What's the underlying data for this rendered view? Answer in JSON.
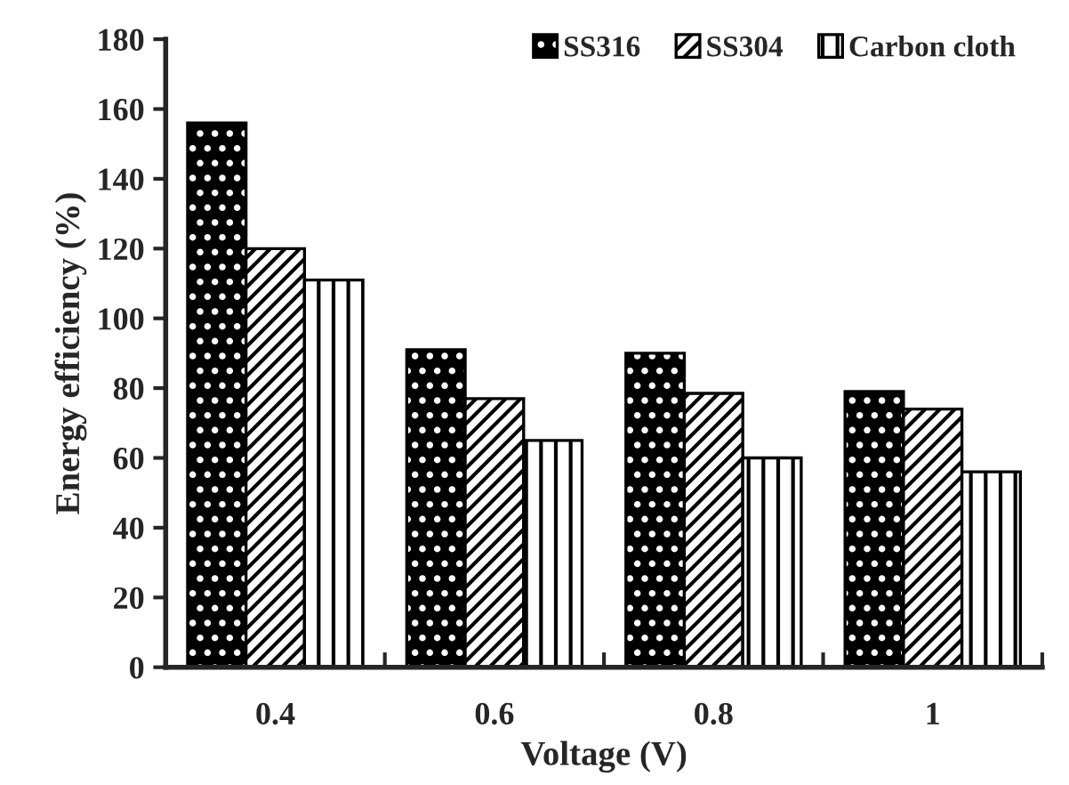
{
  "chart_data": {
    "type": "bar",
    "xlabel": "Voltage (V)",
    "ylabel": "Energy efficiency (%)",
    "categories": [
      "0.4",
      "0.6",
      "0.8",
      "1"
    ],
    "series": [
      {
        "name": "SS316",
        "color": "#000000",
        "values": [
          156,
          91,
          90,
          79
        ]
      },
      {
        "name": "SS304",
        "color": "#000000",
        "values": [
          120,
          77,
          78.5,
          74
        ]
      },
      {
        "name": "Carbon cloth",
        "color": "#000000",
        "values": [
          111,
          65,
          60,
          56
        ]
      }
    ],
    "ylim": [
      0,
      180
    ],
    "yticks": [
      0,
      20,
      40,
      60,
      80,
      100,
      120,
      140,
      160,
      180
    ],
    "grid": false,
    "legend": "top right"
  }
}
